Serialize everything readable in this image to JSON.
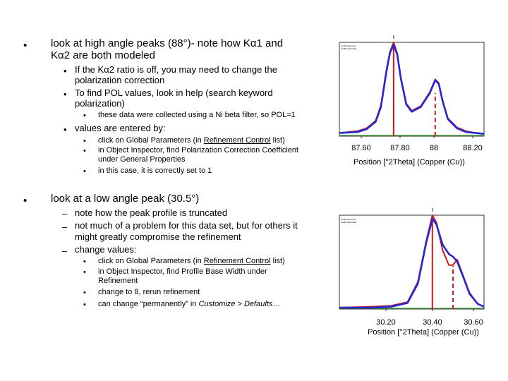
{
  "slide": {
    "b1": {
      "text_pre": "look at high angle peaks (88°)- note how K",
      "alpha1": "α",
      "text_mid": "1 and",
      "line2_k": "K",
      "alpha2": "α",
      "text_end": "2 are both modeled"
    },
    "b1a": {
      "pre": "If the K",
      "alpha": "α",
      "post": "2 ratio is off, you may need to change the",
      "line2": "polarization correction"
    },
    "b1b": {
      "line1": "To find POL values, look in help (search keyword",
      "line2": "polarization)"
    },
    "b1b1": "these data were collected using a Ni beta filter, so POL=1",
    "b1c": "values are entered by:",
    "b1c1": {
      "pre": "click on Global Parameters (in ",
      "link": "Refinement Control",
      "post": " list)"
    },
    "b1c2": {
      "line1": "in Object Inspector, find Polarization Correction Coefficient",
      "line2": "under General Properties"
    },
    "b1c3": "in this case, it is correctly set to 1",
    "b2": "look at a low angle peak (30.5°)",
    "b2a": "note how the peak profile is truncated",
    "b2b": {
      "line1": "not much of a problem for this data set, but for others it",
      "line2": "might greatly compromise the refinement"
    },
    "b2c": "change values:",
    "b2c1": {
      "pre": "click on Global Parameters (in ",
      "link": "Refinement Control",
      "post": " list)"
    },
    "b2c2": {
      "line1": "in Object Inspector, find Profile Base Width under",
      "line2": "Refinement"
    },
    "b2c3": "change to 8, rerun refinement",
    "b2c4": {
      "pre": "can change “permanently” in ",
      "em": "Customize > Defaults",
      "post": "…"
    },
    "bullet_dot": "•",
    "bullet_dash": "–"
  },
  "chart_data": [
    {
      "type": "line",
      "title": "",
      "xlabel": "Position [°2Theta] (Copper (Cu))",
      "x_tick_labels": [
        "87.60",
        "87.80",
        "88",
        "88.20"
      ],
      "xlim": [
        87.5,
        88.3
      ],
      "legend_lines": [
        "Cu00 Observed",
        "Cu00 Calculated"
      ],
      "colors": {
        "observed": "#d01818",
        "calculated": "#2828d0",
        "baseline": "#2e9a2e",
        "marker": "#d01818"
      },
      "series": [
        {
          "name": "Observed",
          "x": [
            87.5,
            87.6,
            87.65,
            87.7,
            87.73,
            87.76,
            87.78,
            87.8,
            87.82,
            87.84,
            87.87,
            87.9,
            87.95,
            88.0,
            88.03,
            88.05,
            88.07,
            88.1,
            88.15,
            88.2,
            88.25,
            88.3
          ],
          "y": [
            2,
            4,
            7,
            15,
            32,
            70,
            90,
            100,
            88,
            62,
            34,
            26,
            31,
            46,
            60,
            56,
            38,
            18,
            8,
            4,
            2,
            1
          ]
        },
        {
          "name": "Calculated",
          "x": [
            87.5,
            87.6,
            87.65,
            87.7,
            87.73,
            87.76,
            87.78,
            87.8,
            87.82,
            87.84,
            87.87,
            87.9,
            87.95,
            88.0,
            88.03,
            88.05,
            88.07,
            88.1,
            88.15,
            88.2,
            88.25,
            88.3
          ],
          "y": [
            2,
            3,
            6,
            14,
            30,
            68,
            89,
            97,
            87,
            61,
            33,
            25,
            30,
            45,
            59,
            55,
            37,
            17,
            7,
            3,
            2,
            1
          ]
        }
      ],
      "peak_markers": [
        {
          "x": 87.8,
          "style": "solid"
        },
        {
          "x": 88.03,
          "style": "dashed"
        }
      ],
      "ylim": [
        0,
        100
      ]
    },
    {
      "type": "line",
      "title": "",
      "xlabel": "Position [°2Theta] (Copper (Cu))",
      "x_tick_labels": [
        "30.20",
        "30.40",
        "30.60"
      ],
      "xlim": [
        29.95,
        30.65
      ],
      "legend_lines": [
        "Cu00 Observed",
        "Cu00 Calculated"
      ],
      "colors": {
        "observed": "#d01818",
        "calculated": "#2828d0",
        "baseline": "#2e9a2e",
        "marker": "#d01818"
      },
      "series": [
        {
          "name": "Observed",
          "x": [
            29.95,
            30.1,
            30.2,
            30.28,
            30.33,
            30.37,
            30.4,
            30.42,
            30.45,
            30.48,
            30.5,
            30.52,
            30.55,
            30.58,
            30.62,
            30.65
          ],
          "y": [
            0,
            1,
            2,
            6,
            28,
            72,
            100,
            92,
            62,
            46,
            46,
            52,
            34,
            16,
            4,
            1
          ]
        },
        {
          "name": "Calculated",
          "x": [
            29.95,
            30.1,
            30.2,
            30.28,
            30.33,
            30.37,
            30.4,
            30.42,
            30.45,
            30.48,
            30.5,
            30.52,
            30.55,
            30.58,
            30.62,
            30.65
          ],
          "y": [
            0,
            0,
            1,
            5,
            26,
            70,
            96,
            90,
            68,
            58,
            55,
            50,
            33,
            15,
            4,
            1
          ]
        }
      ],
      "peak_markers": [
        {
          "x": 30.4,
          "style": "solid"
        },
        {
          "x": 30.5,
          "style": "dashed"
        }
      ],
      "ylim": [
        0,
        100
      ]
    }
  ]
}
